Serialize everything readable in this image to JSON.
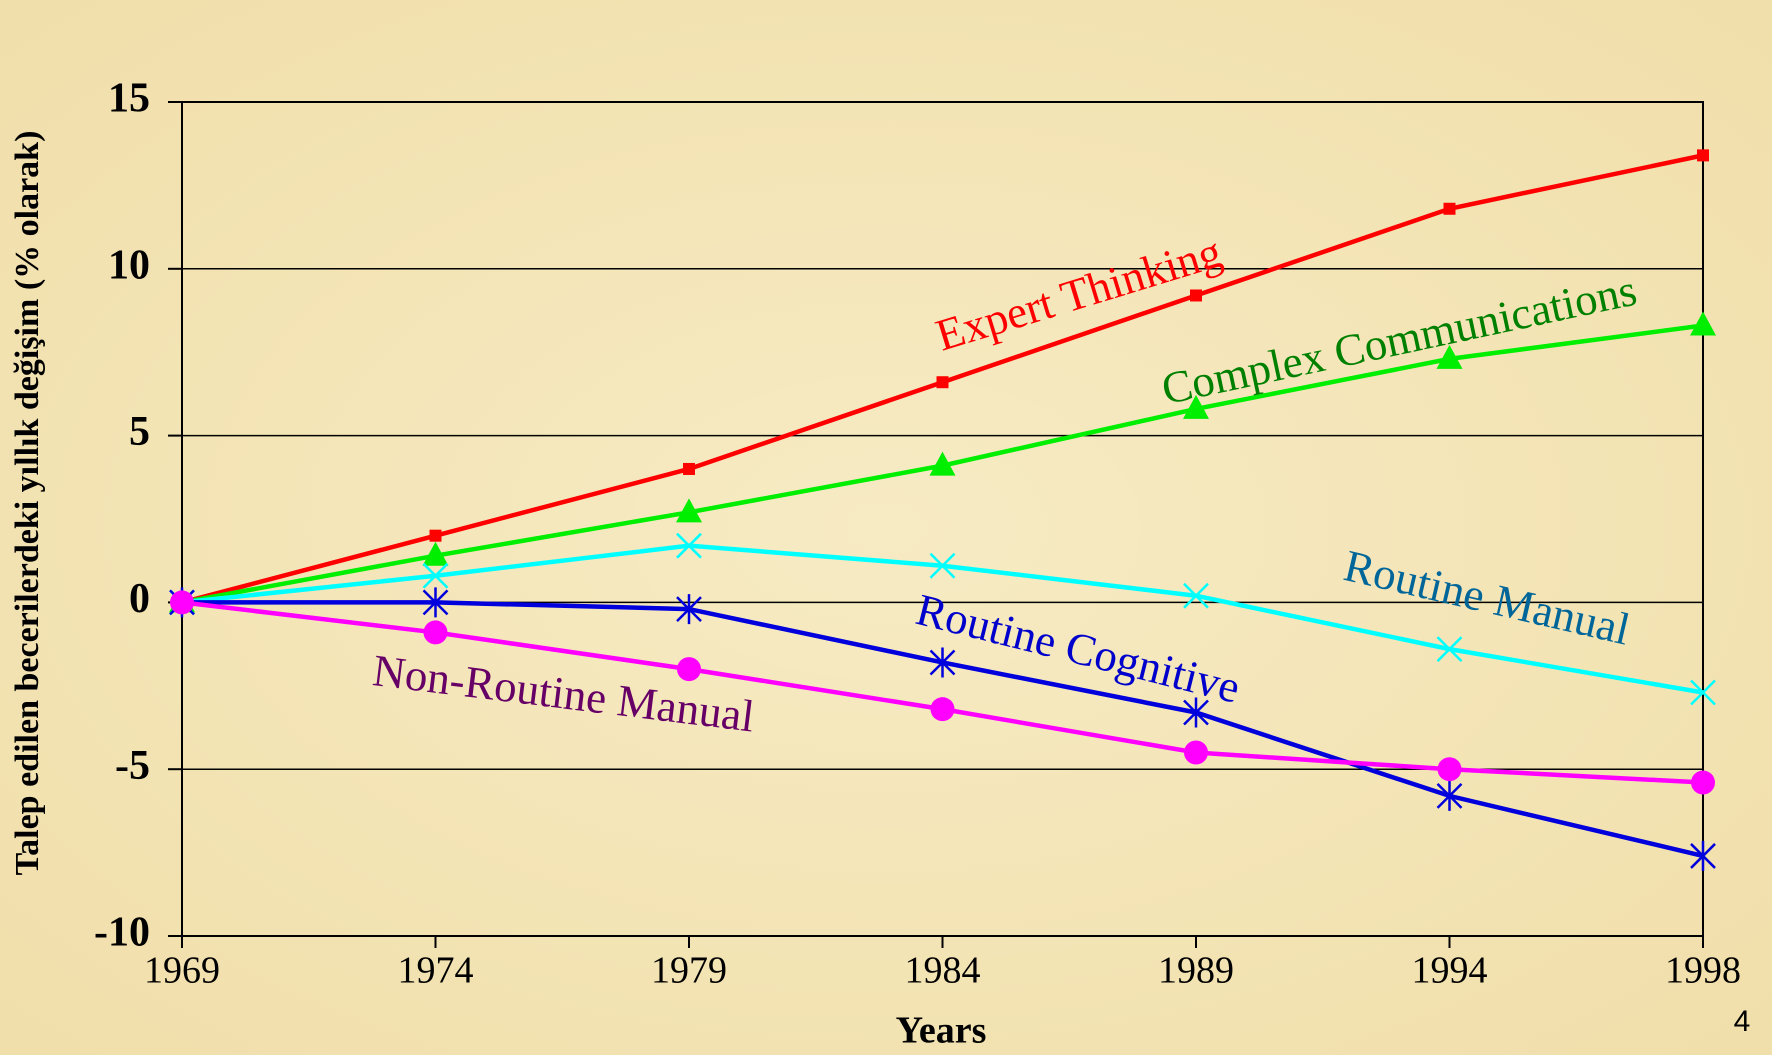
{
  "chart_data": {
    "type": "line",
    "categories": [
      "1969",
      "1974",
      "1979",
      "1984",
      "1989",
      "1994",
      "1998"
    ],
    "xlabel": "Years",
    "ylabel": "Talep edilen becerilerdeki yıllık değişim (% olarak)",
    "ylim": [
      -10,
      15
    ],
    "yticks": [
      -10,
      -5,
      0,
      5,
      10,
      15
    ],
    "grid": true,
    "page_number": "4",
    "series": [
      {
        "name": "Expert Thinking",
        "color": "#ff0000",
        "label_color": "#ff0000",
        "marker": "square",
        "values": [
          0,
          2.0,
          4.0,
          6.6,
          9.2,
          11.8,
          13.4
        ]
      },
      {
        "name": "Complex Communications",
        "color": "#00ee00",
        "label_color": "#008000",
        "marker": "triangle",
        "values": [
          0,
          1.4,
          2.7,
          4.1,
          5.8,
          7.3,
          8.3
        ]
      },
      {
        "name": "Routine Manual",
        "color": "#00ffff",
        "label_color": "#006699",
        "marker": "x",
        "values": [
          0,
          0.8,
          1.7,
          1.1,
          0.2,
          -1.4,
          -2.7
        ]
      },
      {
        "name": "Routine Cognitive",
        "color": "#0000dd",
        "label_color": "#0000cc",
        "marker": "asterisk",
        "values": [
          0,
          0,
          -0.2,
          -1.8,
          -3.3,
          -5.8,
          -7.6
        ]
      },
      {
        "name": "Non-Routine Manual",
        "color": "#ff00ff",
        "label_color": "#660066",
        "marker": "circle",
        "values": [
          0,
          -0.9,
          -2.0,
          -3.2,
          -4.5,
          -5.0,
          -5.4
        ]
      }
    ]
  }
}
